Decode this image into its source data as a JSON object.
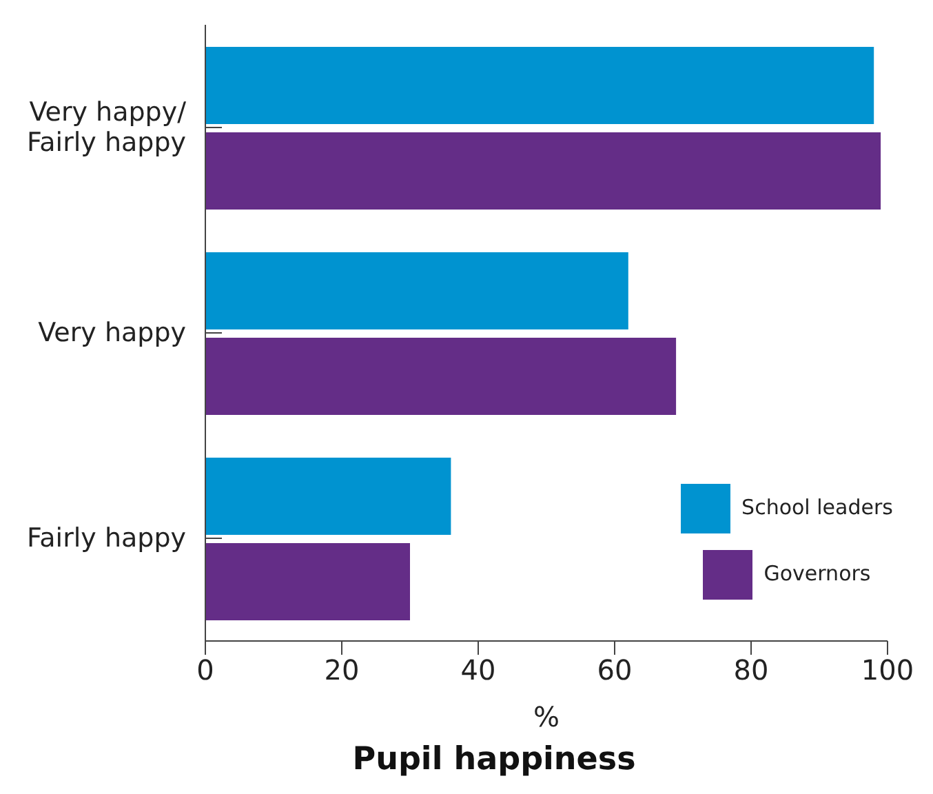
{
  "chart_data": {
    "type": "bar",
    "orientation": "horizontal",
    "title": "Pupil happiness",
    "xlabel": "%",
    "categories": [
      "Very happy/ Fairly happy",
      "Very happy",
      "Fairly happy"
    ],
    "series": [
      {
        "name": "School leaders",
        "color": "#0093d0",
        "values": [
          98,
          62,
          36
        ]
      },
      {
        "name": "Governors",
        "color": "#642d87",
        "values": [
          99,
          69,
          30
        ]
      }
    ],
    "xlim": [
      0,
      100
    ],
    "xticks": [
      0,
      20,
      40,
      60,
      80,
      100
    ],
    "grid": false,
    "legend": "bottom right"
  }
}
